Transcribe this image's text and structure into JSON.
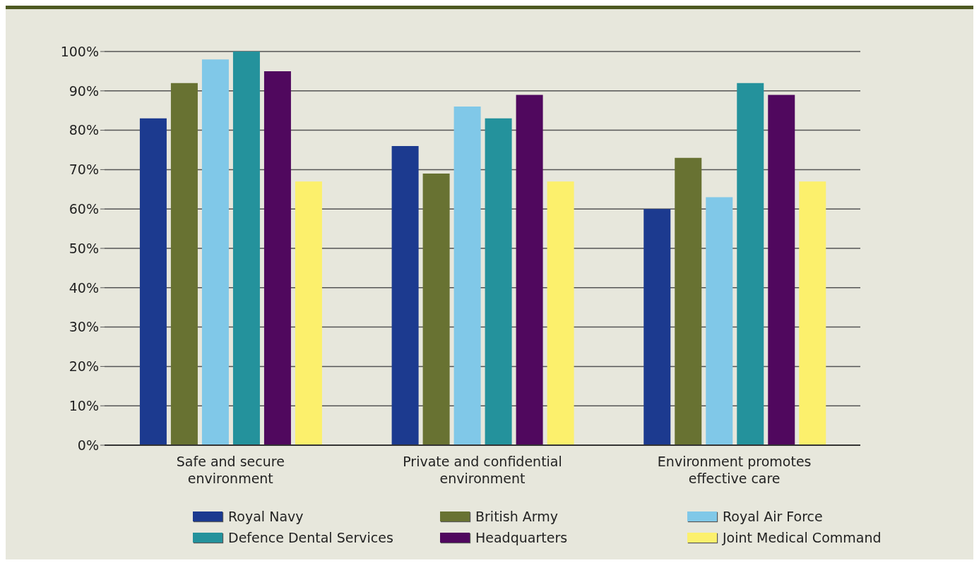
{
  "chart_data": {
    "type": "bar",
    "categories": [
      "Safe and secure environment",
      "Private and confidential environment",
      "Environment promotes effective care"
    ],
    "series": [
      {
        "name": "Royal Navy",
        "color": "#1c3a8f",
        "values": [
          83,
          76,
          60
        ]
      },
      {
        "name": "British Army",
        "color": "#687232",
        "values": [
          92,
          69,
          73
        ]
      },
      {
        "name": "Royal Air Force",
        "color": "#80c8e8",
        "values": [
          98,
          86,
          63
        ]
      },
      {
        "name": "Defence Dental Services",
        "color": "#24929c",
        "values": [
          100,
          83,
          92
        ]
      },
      {
        "name": "Headquarters",
        "color": "#50085e",
        "values": [
          95,
          89,
          89
        ]
      },
      {
        "name": "Joint Medical Command",
        "color": "#fcf06c",
        "values": [
          67,
          67,
          67
        ]
      }
    ],
    "ylim": [
      0,
      100
    ],
    "yticks": [
      {
        "value": 0,
        "label": "0%"
      },
      {
        "value": 10,
        "label": "10%"
      },
      {
        "value": 20,
        "label": "20%"
      },
      {
        "value": 30,
        "label": "30%"
      },
      {
        "value": 40,
        "label": "40%"
      },
      {
        "value": 50,
        "label": "50%"
      },
      {
        "value": 60,
        "label": "60%"
      },
      {
        "value": 70,
        "label": "70%"
      },
      {
        "value": 80,
        "label": "80%"
      },
      {
        "value": 90,
        "label": "90%"
      },
      {
        "value": 100,
        "label": "100%"
      }
    ],
    "grid": "y",
    "legend": "bottom"
  }
}
